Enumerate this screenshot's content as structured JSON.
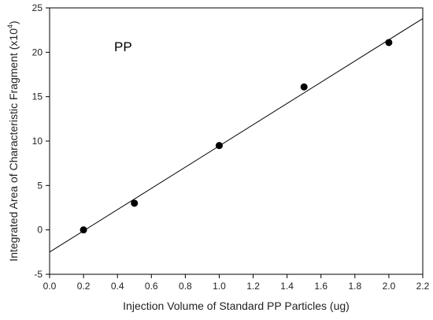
{
  "chart_data": {
    "type": "scatter",
    "xlabel": "Injection Volume of Standard PP Particles (ug)",
    "ylabel_main": "Integrated Area of Characteristic Fragment (x10",
    "ylabel_sup": "4",
    "ylabel_close": ")",
    "annotation": "PP",
    "xlim": [
      0.0,
      2.2
    ],
    "ylim": [
      -5,
      25
    ],
    "xticks": [
      "0.0",
      "0.2",
      "0.4",
      "0.6",
      "0.8",
      "1.0",
      "1.2",
      "1.4",
      "1.6",
      "1.8",
      "2.0",
      "2.2"
    ],
    "yticks": [
      "-5",
      "0",
      "5",
      "10",
      "15",
      "20",
      "25"
    ],
    "series": [
      {
        "x": [
          0.2,
          0.5,
          1.0,
          1.5,
          2.0
        ],
        "y": [
          0.0,
          3.0,
          9.5,
          16.1,
          21.1
        ]
      }
    ],
    "fit_line": {
      "x": [
        0.0,
        2.2
      ],
      "y": [
        -2.5,
        23.8
      ]
    },
    "colors": {
      "marker": "#000000",
      "line": "#000000",
      "axis": "#000000"
    }
  }
}
